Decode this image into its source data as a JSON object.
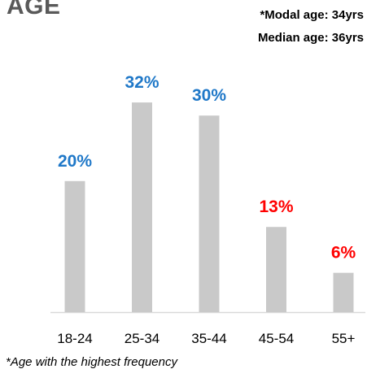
{
  "chart_data": {
    "type": "bar",
    "title": "AGE",
    "categories": [
      "18-24",
      "25-34",
      "35-44",
      "45-54",
      "55+"
    ],
    "values": [
      20,
      32,
      30,
      13,
      6
    ],
    "value_labels": [
      "20%",
      "32%",
      "30%",
      "13%",
      "6%"
    ],
    "value_label_colors": [
      "#1F78C8",
      "#1F78C8",
      "#1F78C8",
      "#FF0000",
      "#FF0000"
    ],
    "bar_color": "#C9C9C9",
    "axis_color": "#D9D9D9",
    "ylim": [
      0,
      35
    ],
    "grid": false,
    "annotations": [
      "*Modal age: 34yrs",
      "Median age: 36yrs"
    ],
    "footnote": "*Age with the highest frequency"
  },
  "colors": {
    "title": "#595959",
    "text": "#000000"
  }
}
